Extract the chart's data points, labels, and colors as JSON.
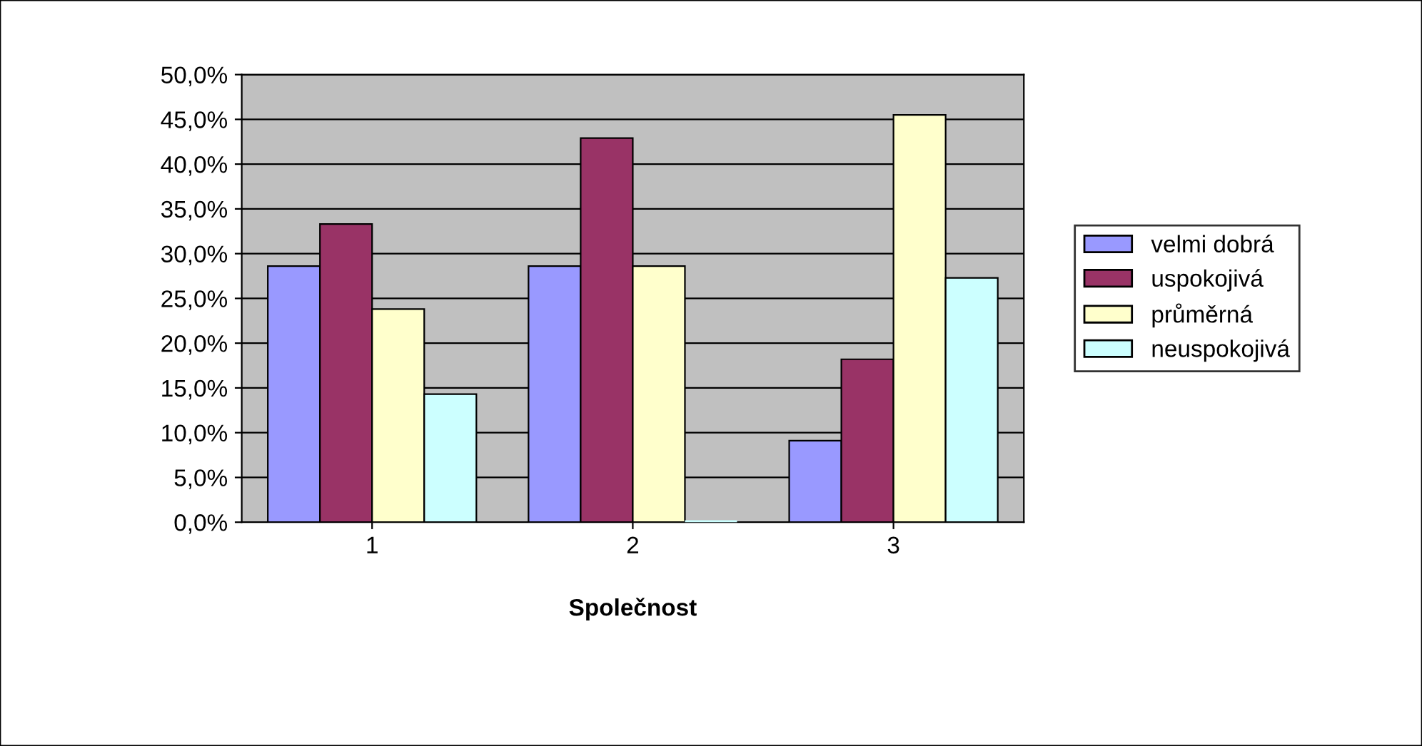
{
  "chart_data": {
    "type": "bar",
    "xlabel": "Společnost",
    "categories": [
      "1",
      "2",
      "3"
    ],
    "series": [
      {
        "name": "velmi dobrá",
        "color": "#9999ff",
        "values": [
          28.6,
          28.6,
          9.1
        ]
      },
      {
        "name": "uspokojivá",
        "color": "#993366",
        "values": [
          33.3,
          42.9,
          18.2
        ]
      },
      {
        "name": "průměrná",
        "color": "#ffffcc",
        "values": [
          23.8,
          28.6,
          45.5
        ]
      },
      {
        "name": "neuspokojivá",
        "color": "#ccffff",
        "values": [
          14.3,
          0,
          27.3
        ]
      }
    ],
    "ylim": [
      0,
      50
    ],
    "yticks": [
      {
        "value": 0,
        "label": "0,0%"
      },
      {
        "value": 5,
        "label": "5,0%"
      },
      {
        "value": 10,
        "label": "10,0%"
      },
      {
        "value": 15,
        "label": "15,0%"
      },
      {
        "value": 20,
        "label": "20,0%"
      },
      {
        "value": 25,
        "label": "25,0%"
      },
      {
        "value": 30,
        "label": "30,0%"
      },
      {
        "value": 35,
        "label": "35,0%"
      },
      {
        "value": 40,
        "label": "40,0%"
      },
      {
        "value": 45,
        "label": "45,0%"
      },
      {
        "value": 50,
        "label": "50,0%"
      }
    ],
    "grid": "y",
    "legend": "right"
  }
}
